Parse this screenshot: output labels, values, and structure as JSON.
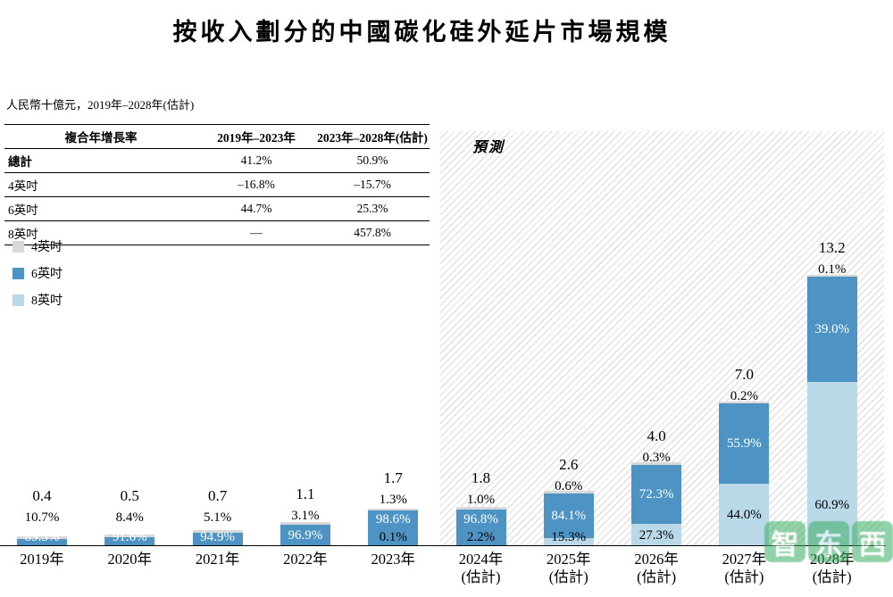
{
  "title": "按收入劃分的中國碳化硅外延片市場規模",
  "unit_note": "人民幣十億元，2019年–2028年(估計)",
  "forecast": {
    "label": "預測"
  },
  "cagr_table": {
    "headers": [
      "複合年增長率",
      "2019年–2023年",
      "2023年–2028年(估計)"
    ],
    "rows": [
      {
        "label": "總計",
        "v1": "41.2%",
        "v2": "50.9%"
      },
      {
        "label": "4英吋",
        "v1": "–16.8%",
        "v2": "–15.7%"
      },
      {
        "label": "6英吋",
        "v1": "44.7%",
        "v2": "25.3%"
      },
      {
        "label": "8英吋",
        "v1": "—",
        "v2": "457.8%"
      }
    ]
  },
  "legend": [
    {
      "label": "4英吋",
      "color": "#d9d9d9"
    },
    {
      "label": "6英吋",
      "color": "#4d94c4"
    },
    {
      "label": "8英吋",
      "color": "#b9d8e8"
    }
  ],
  "chart_data": {
    "type": "bar",
    "stacked": true,
    "title": "按收入劃分的中國碳化硅外延片市場規模",
    "ylabel": "人民幣十億元",
    "xlabel": "",
    "ylim": [
      0,
      13.2
    ],
    "grid": false,
    "legend_position": "upper-left",
    "categories": [
      "2019年",
      "2020年",
      "2021年",
      "2022年",
      "2023年",
      "2024年(估計)",
      "2025年(估計)",
      "2026年(估計)",
      "2027年(估計)",
      "2028年(估計)"
    ],
    "totals": [
      0.4,
      0.5,
      0.7,
      1.1,
      1.7,
      1.8,
      2.6,
      4.0,
      7.0,
      13.2
    ],
    "series": [
      {
        "name": "4英吋",
        "color": "#d9d9d9",
        "pct": [
          10.7,
          8.4,
          5.1,
          3.1,
          1.3,
          1.0,
          0.6,
          0.3,
          0.2,
          0.1
        ]
      },
      {
        "name": "6英吋",
        "color": "#4d94c4",
        "pct": [
          89.3,
          91.6,
          94.9,
          96.9,
          98.6,
          96.8,
          84.1,
          72.3,
          55.9,
          39.0
        ]
      },
      {
        "name": "8英吋",
        "color": "#b9d8e8",
        "pct": [
          null,
          null,
          null,
          null,
          0.1,
          2.2,
          15.3,
          27.3,
          44.0,
          60.9
        ]
      }
    ],
    "forecast_from_index": 5,
    "forecast_label": "預測"
  },
  "watermark": "智东西"
}
